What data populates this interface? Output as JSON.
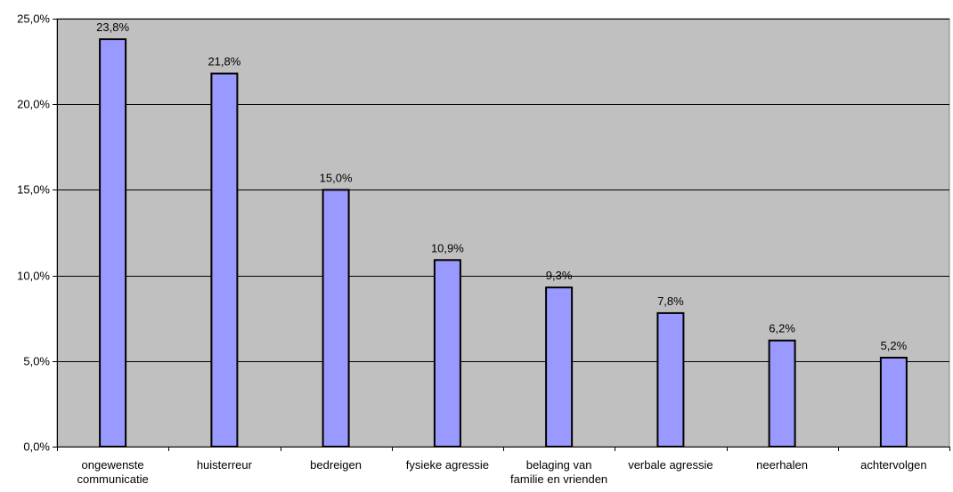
{
  "chart_data": {
    "type": "bar",
    "title": "",
    "xlabel": "",
    "ylabel": "",
    "categories": [
      [
        "ongewenste",
        "communicatie"
      ],
      [
        "huisterreur"
      ],
      [
        "bedreigen"
      ],
      [
        "fysieke agressie"
      ],
      [
        "belaging van",
        "familie en vrienden"
      ],
      [
        "verbale agressie"
      ],
      [
        "neerhalen"
      ],
      [
        "achtervolgen"
      ]
    ],
    "values": [
      23.8,
      21.8,
      15.0,
      10.9,
      9.3,
      7.8,
      6.2,
      5.2
    ],
    "value_labels": [
      "23,8%",
      "21,8%",
      "15,0%",
      "10,9%",
      "9,3%",
      "7,8%",
      "6,2%",
      "5,2%"
    ],
    "ylim": [
      0,
      25
    ],
    "yticks": [
      0,
      5,
      10,
      15,
      20,
      25
    ],
    "ytick_labels": [
      "0,0%",
      "5,0%",
      "10,0%",
      "15,0%",
      "20,0%",
      "25,0%"
    ],
    "grid": true,
    "legend": "none",
    "colors": {
      "plot_background": "#c0c0c0",
      "bar_fill": "#9999ff",
      "bar_stroke": "#000000",
      "gridline": "#000000"
    }
  }
}
